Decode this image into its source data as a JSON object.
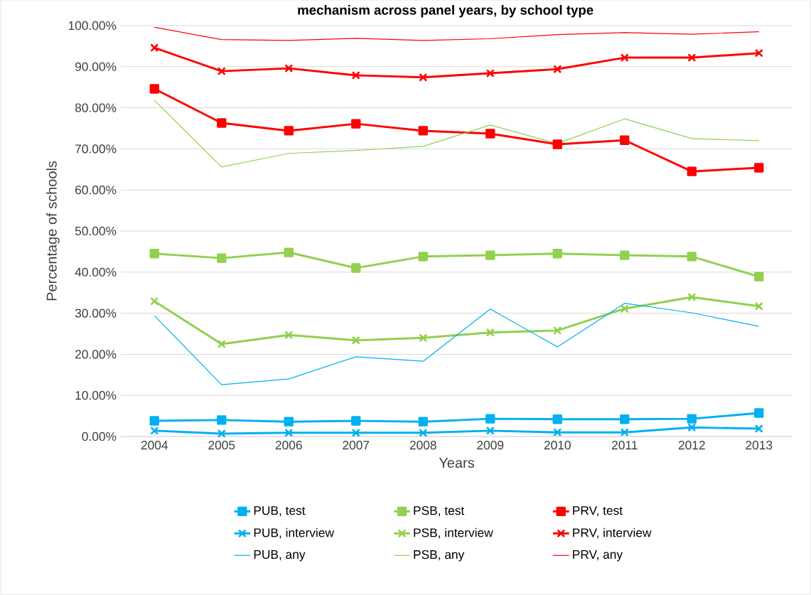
{
  "chart_data": {
    "type": "line",
    "title": "mechanism across panel years, by school type",
    "xlabel": "Years",
    "ylabel": "Percentage of schools",
    "categories": [
      "2004",
      "2005",
      "2006",
      "2007",
      "2008",
      "2009",
      "2010",
      "2011",
      "2012",
      "2013"
    ],
    "ylim": [
      0,
      100
    ],
    "yticks": [
      {
        "value": 0,
        "label": "0.00%"
      },
      {
        "value": 10,
        "label": "10.00%"
      },
      {
        "value": 20,
        "label": "20.00%"
      },
      {
        "value": 30,
        "label": "30.00%"
      },
      {
        "value": 40,
        "label": "40.00%"
      },
      {
        "value": 50,
        "label": "50.00%"
      },
      {
        "value": 60,
        "label": "60.00%"
      },
      {
        "value": 70,
        "label": "70.00%"
      },
      {
        "value": 80,
        "label": "80.00%"
      },
      {
        "value": 90,
        "label": "90.00%"
      },
      {
        "value": 100,
        "label": "100.00%"
      }
    ],
    "grid": "y",
    "legend": "bottom",
    "series": [
      {
        "name": "PUB, test",
        "color": "#00b0f0",
        "marker": "square",
        "values": [
          3.8,
          4.0,
          3.6,
          3.8,
          3.6,
          4.3,
          4.2,
          4.2,
          4.3,
          5.7
        ]
      },
      {
        "name": "PSB, test",
        "color": "#92d050",
        "marker": "square",
        "values": [
          44.5,
          43.4,
          44.8,
          41.0,
          43.8,
          44.1,
          44.5,
          44.1,
          43.8,
          38.9
        ]
      },
      {
        "name": "PRV, test",
        "color": "#ff0000",
        "marker": "square",
        "values": [
          84.6,
          76.3,
          74.4,
          76.1,
          74.4,
          73.7,
          71.1,
          72.1,
          64.5,
          65.4
        ]
      },
      {
        "name": "PUB, interview",
        "color": "#00b0f0",
        "marker": "cross",
        "values": [
          1.4,
          0.7,
          0.9,
          0.9,
          0.9,
          1.4,
          1.0,
          1.0,
          2.2,
          1.9
        ]
      },
      {
        "name": "PSB, interview",
        "color": "#92d050",
        "marker": "cross",
        "values": [
          32.9,
          22.5,
          24.7,
          23.4,
          24.0,
          25.3,
          25.8,
          31.1,
          33.9,
          31.7
        ]
      },
      {
        "name": "PRV, interview",
        "color": "#ff0000",
        "marker": "cross",
        "values": [
          94.6,
          88.9,
          89.6,
          87.9,
          87.4,
          88.4,
          89.4,
          92.2,
          92.2,
          93.3
        ]
      },
      {
        "name": "PUB, any",
        "color": "#00b0f0",
        "marker": "none",
        "values": [
          29.4,
          12.6,
          14.0,
          19.4,
          18.3,
          31.0,
          21.8,
          32.4,
          30.1,
          26.8
        ]
      },
      {
        "name": "PSB, any",
        "color": "#92d050",
        "marker": "none",
        "values": [
          81.8,
          65.6,
          68.9,
          69.6,
          70.6,
          75.8,
          71.3,
          77.3,
          72.5,
          72.0
        ]
      },
      {
        "name": "PRV, any",
        "color": "#ff0000",
        "marker": "none",
        "values": [
          99.6,
          96.6,
          96.4,
          96.9,
          96.4,
          96.8,
          97.8,
          98.3,
          97.9,
          98.5
        ]
      }
    ]
  }
}
